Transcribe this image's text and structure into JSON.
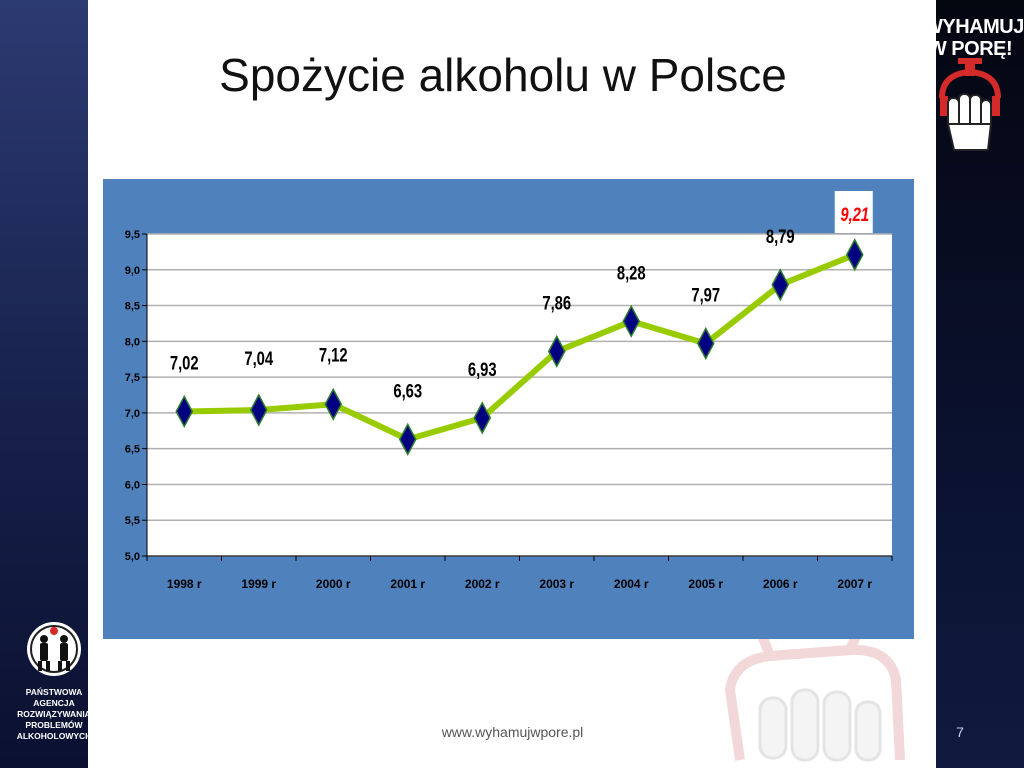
{
  "slide": {
    "title": "Spożycie alkoholu w Polsce",
    "footer_url": "www.wyhamujwpore.pl",
    "page_number": "7"
  },
  "logos": {
    "campaign_text_line1": "WYHAMUJ",
    "campaign_text_line2": "W PORĘ!",
    "agency_lines": [
      "PAŃSTWOWA",
      "AGENCJA",
      "ROZWIĄZYWANIA",
      "PROBLEMÓW",
      "ALKOHOLOWYCH"
    ]
  },
  "chart_data": {
    "type": "line",
    "title": "",
    "xlabel": "",
    "ylabel": "",
    "categories": [
      "1998 r",
      "1999 r",
      "2000 r",
      "2001 r",
      "2002 r",
      "2003 r",
      "2004 r",
      "2005 r",
      "2006 r",
      "2007 r"
    ],
    "values": [
      7.02,
      7.04,
      7.12,
      6.63,
      6.93,
      7.86,
      8.28,
      7.97,
      8.79,
      9.21
    ],
    "data_labels": [
      "7,02",
      "7,04",
      "7,12",
      "6,63",
      "6,93",
      "7,86",
      "8,28",
      "7,97",
      "8,79",
      "9,21"
    ],
    "ylim": [
      5.0,
      9.5
    ],
    "yticks": [
      5.0,
      5.5,
      6.0,
      6.5,
      7.0,
      7.5,
      8.0,
      8.5,
      9.0,
      9.5
    ],
    "ytick_labels": [
      "5,0",
      "5,5",
      "6,0",
      "6,5",
      "7,0",
      "7,5",
      "8,0",
      "8,5",
      "9,0",
      "9,5"
    ],
    "grid": true,
    "line_color": "#99cc00",
    "marker_color": "#000080",
    "label_color": "#000000",
    "highlight_label_color": "#ff0000",
    "highlight_index": 9
  }
}
